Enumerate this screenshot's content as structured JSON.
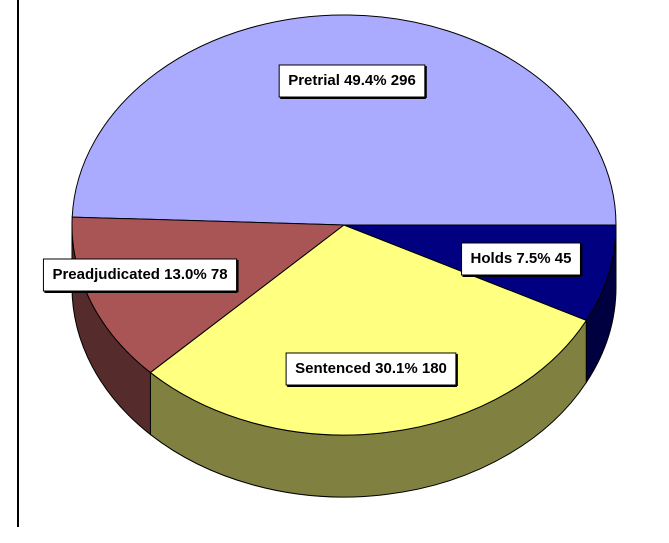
{
  "chart_data": {
    "type": "pie",
    "categories": [
      "Pretrial",
      "Preadjudicated",
      "Sentenced",
      "Holds"
    ],
    "values": [
      49.4,
      13.0,
      30.1,
      7.5
    ],
    "value_labels": [
      "49.4%",
      "13.0%",
      "30.1%",
      "7.5%"
    ],
    "counts": [
      296,
      78,
      180,
      45
    ],
    "colors": [
      "#aaaaff",
      "#aa5555",
      "#ffff80",
      "#000080"
    ],
    "three_d": true
  }
}
